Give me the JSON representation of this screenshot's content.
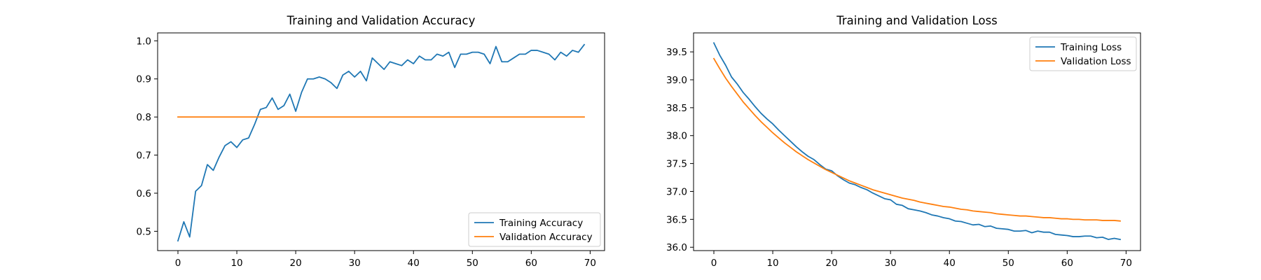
{
  "chart_data": [
    {
      "type": "line",
      "title": "Training and Validation Accuracy",
      "xlabel": "",
      "ylabel": "",
      "xlim": [
        -3.45,
        72.45
      ],
      "ylim": [
        0.4493,
        1.0208
      ],
      "xticks": [
        0,
        10,
        20,
        30,
        40,
        50,
        60,
        70
      ],
      "xtick_labels": [
        "0",
        "10",
        "20",
        "30",
        "40",
        "50",
        "60",
        "70"
      ],
      "yticks": [
        0.5,
        0.6,
        0.7,
        0.8,
        0.9,
        1.0
      ],
      "ytick_labels": [
        "0.5",
        "0.6",
        "0.7",
        "0.8",
        "0.9",
        "1.0"
      ],
      "grid": false,
      "legend_position": "lower-right",
      "x": [
        0,
        1,
        2,
        3,
        4,
        5,
        6,
        7,
        8,
        9,
        10,
        11,
        12,
        13,
        14,
        15,
        16,
        17,
        18,
        19,
        20,
        21,
        22,
        23,
        24,
        25,
        26,
        27,
        28,
        29,
        30,
        31,
        32,
        33,
        34,
        35,
        36,
        37,
        38,
        39,
        40,
        41,
        42,
        43,
        44,
        45,
        46,
        47,
        48,
        49,
        50,
        51,
        52,
        53,
        54,
        55,
        56,
        57,
        58,
        59,
        60,
        61,
        62,
        63,
        64,
        65,
        66,
        67,
        68,
        69
      ],
      "series": [
        {
          "name": "Training Accuracy",
          "color": "#1f77b4",
          "values": [
            0.475,
            0.525,
            0.485,
            0.605,
            0.62,
            0.675,
            0.66,
            0.695,
            0.725,
            0.735,
            0.72,
            0.74,
            0.745,
            0.78,
            0.82,
            0.825,
            0.85,
            0.82,
            0.83,
            0.86,
            0.815,
            0.865,
            0.9,
            0.9,
            0.905,
            0.9,
            0.89,
            0.875,
            0.91,
            0.92,
            0.905,
            0.92,
            0.895,
            0.955,
            0.94,
            0.925,
            0.945,
            0.94,
            0.935,
            0.95,
            0.94,
            0.96,
            0.95,
            0.95,
            0.965,
            0.96,
            0.97,
            0.93,
            0.965,
            0.965,
            0.97,
            0.97,
            0.965,
            0.94,
            0.985,
            0.945,
            0.945,
            0.955,
            0.965,
            0.965,
            0.975,
            0.975,
            0.97,
            0.965,
            0.95,
            0.97,
            0.96,
            0.975,
            0.97,
            0.99
          ]
        },
        {
          "name": "Validation Accuracy",
          "color": "#ff7f0e",
          "values": [
            0.8,
            0.8,
            0.8,
            0.8,
            0.8,
            0.8,
            0.8,
            0.8,
            0.8,
            0.8,
            0.8,
            0.8,
            0.8,
            0.8,
            0.8,
            0.8,
            0.8,
            0.8,
            0.8,
            0.8,
            0.8,
            0.8,
            0.8,
            0.8,
            0.8,
            0.8,
            0.8,
            0.8,
            0.8,
            0.8,
            0.8,
            0.8,
            0.8,
            0.8,
            0.8,
            0.8,
            0.8,
            0.8,
            0.8,
            0.8,
            0.8,
            0.8,
            0.8,
            0.8,
            0.8,
            0.8,
            0.8,
            0.8,
            0.8,
            0.8,
            0.8,
            0.8,
            0.8,
            0.8,
            0.8,
            0.8,
            0.8,
            0.8,
            0.8,
            0.8,
            0.8,
            0.8,
            0.8,
            0.8,
            0.8,
            0.8,
            0.8,
            0.8,
            0.8,
            0.8
          ]
        }
      ]
    },
    {
      "type": "line",
      "title": "Training and Validation Loss",
      "xlabel": "",
      "ylabel": "",
      "xlim": [
        -3.45,
        72.45
      ],
      "ylim": [
        35.94,
        39.84
      ],
      "xticks": [
        0,
        10,
        20,
        30,
        40,
        50,
        60,
        70
      ],
      "xtick_labels": [
        "0",
        "10",
        "20",
        "30",
        "40",
        "50",
        "60",
        "70"
      ],
      "yticks": [
        36.0,
        36.5,
        37.0,
        37.5,
        38.0,
        38.5,
        39.0,
        39.5
      ],
      "ytick_labels": [
        "36.0",
        "36.5",
        "37.0",
        "37.5",
        "38.0",
        "38.5",
        "39.0",
        "39.5"
      ],
      "grid": false,
      "legend_position": "upper-right",
      "x": [
        0,
        1,
        2,
        3,
        4,
        5,
        6,
        7,
        8,
        9,
        10,
        11,
        12,
        13,
        14,
        15,
        16,
        17,
        18,
        19,
        20,
        21,
        22,
        23,
        24,
        25,
        26,
        27,
        28,
        29,
        30,
        31,
        32,
        33,
        34,
        35,
        36,
        37,
        38,
        39,
        40,
        41,
        42,
        43,
        44,
        45,
        46,
        47,
        48,
        49,
        50,
        51,
        52,
        53,
        54,
        55,
        56,
        57,
        58,
        59,
        60,
        61,
        62,
        63,
        64,
        65,
        66,
        67,
        68,
        69
      ],
      "series": [
        {
          "name": "Training Loss",
          "color": "#1f77b4",
          "values": [
            39.66,
            39.44,
            39.26,
            39.05,
            38.92,
            38.77,
            38.65,
            38.52,
            38.4,
            38.3,
            38.21,
            38.1,
            38.0,
            37.9,
            37.8,
            37.71,
            37.63,
            37.57,
            37.48,
            37.4,
            37.37,
            37.28,
            37.21,
            37.15,
            37.12,
            37.07,
            37.03,
            36.97,
            36.92,
            36.87,
            36.85,
            36.77,
            36.75,
            36.69,
            36.67,
            36.65,
            36.62,
            36.58,
            36.56,
            36.53,
            36.51,
            36.47,
            36.46,
            36.43,
            36.4,
            36.41,
            36.37,
            36.38,
            36.34,
            36.33,
            36.32,
            36.29,
            36.29,
            36.3,
            36.26,
            36.29,
            36.27,
            36.27,
            36.23,
            36.22,
            36.21,
            36.19,
            36.19,
            36.2,
            36.2,
            36.17,
            36.18,
            36.14,
            36.16,
            36.14
          ]
        },
        {
          "name": "Validation Loss",
          "color": "#ff7f0e",
          "values": [
            39.38,
            39.2,
            39.03,
            38.88,
            38.74,
            38.6,
            38.48,
            38.36,
            38.25,
            38.15,
            38.05,
            37.96,
            37.87,
            37.79,
            37.71,
            37.64,
            37.57,
            37.51,
            37.45,
            37.39,
            37.34,
            37.29,
            37.24,
            37.19,
            37.15,
            37.11,
            37.07,
            37.03,
            37.0,
            36.97,
            36.94,
            36.91,
            36.88,
            36.86,
            36.84,
            36.81,
            36.79,
            36.77,
            36.75,
            36.73,
            36.72,
            36.7,
            36.68,
            36.67,
            36.65,
            36.64,
            36.63,
            36.62,
            36.6,
            36.59,
            36.58,
            36.57,
            36.56,
            36.56,
            36.55,
            36.54,
            36.53,
            36.53,
            36.52,
            36.51,
            36.51,
            36.5,
            36.5,
            36.49,
            36.49,
            36.49,
            36.48,
            36.48,
            36.48,
            36.47
          ]
        }
      ]
    }
  ]
}
